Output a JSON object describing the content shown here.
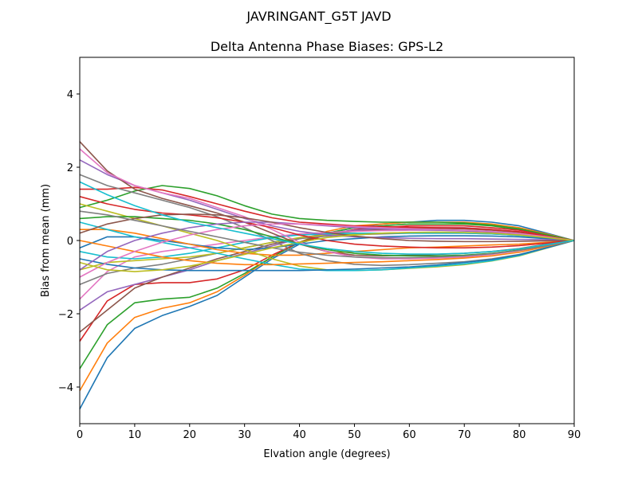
{
  "figure": {
    "suptitle": "JAVRINGANT_G5T  JAVD"
  },
  "chart_data": {
    "type": "line",
    "title": "Delta Antenna Phase Biases: GPS-L2",
    "xlabel": "Elvation angle (degrees)",
    "ylabel": "Bias from mean (mm)",
    "xlim": [
      0,
      90
    ],
    "ylim": [
      -5,
      5
    ],
    "xticks": [
      0,
      10,
      20,
      30,
      40,
      50,
      60,
      70,
      80,
      90
    ],
    "yticks": [
      -4,
      -2,
      0,
      2,
      4
    ],
    "x": [
      0,
      5,
      10,
      15,
      20,
      25,
      30,
      35,
      40,
      45,
      50,
      55,
      60,
      65,
      70,
      75,
      80,
      85,
      90
    ],
    "grid": false,
    "legend": "none",
    "palette": [
      "#1f77b4",
      "#ff7f0e",
      "#2ca02c",
      "#d62728",
      "#9467bd",
      "#8c564b",
      "#e377c2",
      "#7f7f7f",
      "#bcbd22",
      "#17becf"
    ],
    "series": [
      {
        "values": [
          -4.6,
          -3.2,
          -2.4,
          -2.05,
          -1.8,
          -1.5,
          -1.0,
          -0.5,
          -0.1,
          0.2,
          0.35,
          0.45,
          0.5,
          0.55,
          0.55,
          0.5,
          0.4,
          0.2,
          0
        ]
      },
      {
        "values": [
          -4.1,
          -2.8,
          -2.1,
          -1.85,
          -1.7,
          -1.4,
          -0.95,
          -0.45,
          -0.05,
          0.25,
          0.4,
          0.45,
          0.5,
          0.5,
          0.5,
          0.45,
          0.35,
          0.18,
          0
        ]
      },
      {
        "values": [
          -3.5,
          -2.3,
          -1.7,
          -1.6,
          -1.55,
          -1.3,
          -0.9,
          -0.45,
          -0.05,
          0.2,
          0.35,
          0.4,
          0.45,
          0.45,
          0.45,
          0.4,
          0.3,
          0.15,
          0
        ]
      },
      {
        "values": [
          -2.75,
          -1.65,
          -1.2,
          -1.15,
          -1.15,
          -1.05,
          -0.8,
          -0.4,
          -0.05,
          0.15,
          0.3,
          0.35,
          0.4,
          0.4,
          0.4,
          0.35,
          0.28,
          0.14,
          0
        ]
      },
      {
        "values": [
          -1.9,
          -1.4,
          -1.2,
          -1.0,
          -0.8,
          -0.55,
          -0.35,
          -0.15,
          0.05,
          0.2,
          0.28,
          0.32,
          0.35,
          0.35,
          0.35,
          0.3,
          0.24,
          0.12,
          0
        ]
      },
      {
        "values": [
          -2.5,
          -1.9,
          -1.3,
          -1.0,
          -0.75,
          -0.5,
          -0.3,
          -0.1,
          0.05,
          0.18,
          0.25,
          0.3,
          0.32,
          0.33,
          0.32,
          0.28,
          0.22,
          0.11,
          0
        ]
      },
      {
        "values": [
          -1.6,
          -0.85,
          -0.45,
          -0.3,
          -0.2,
          -0.1,
          0.0,
          0.1,
          0.18,
          0.22,
          0.25,
          0.27,
          0.28,
          0.28,
          0.27,
          0.24,
          0.18,
          0.09,
          0
        ]
      },
      {
        "values": [
          -1.2,
          -0.9,
          -0.75,
          -0.65,
          -0.5,
          -0.35,
          -0.2,
          -0.05,
          0.05,
          0.12,
          0.16,
          0.18,
          0.2,
          0.2,
          0.2,
          0.18,
          0.14,
          0.07,
          0
        ]
      },
      {
        "values": [
          -0.8,
          -0.6,
          -0.55,
          -0.5,
          -0.45,
          -0.35,
          -0.2,
          -0.05,
          0.08,
          0.15,
          0.18,
          0.2,
          0.22,
          0.22,
          0.21,
          0.19,
          0.15,
          0.08,
          0
        ]
      },
      {
        "values": [
          -0.3,
          -0.45,
          -0.5,
          -0.45,
          -0.35,
          -0.2,
          -0.05,
          0.08,
          0.15,
          0.18,
          0.2,
          0.2,
          0.2,
          0.2,
          0.2,
          0.18,
          0.14,
          0.07,
          0
        ]
      },
      {
        "values": [
          -0.2,
          0.1,
          0.1,
          0.0,
          -0.1,
          -0.2,
          -0.25,
          -0.2,
          -0.1,
          0.0,
          0.05,
          0.1,
          0.12,
          0.13,
          0.13,
          0.12,
          0.1,
          0.05,
          0
        ]
      },
      {
        "values": [
          0.3,
          0.3,
          0.2,
          0.05,
          -0.1,
          -0.25,
          -0.35,
          -0.4,
          -0.4,
          -0.35,
          -0.3,
          -0.25,
          -0.2,
          -0.18,
          -0.15,
          -0.12,
          -0.1,
          -0.05,
          0
        ]
      },
      {
        "values": [
          0.9,
          1.1,
          1.35,
          1.5,
          1.42,
          1.22,
          0.95,
          0.72,
          0.6,
          0.55,
          0.52,
          0.5,
          0.5,
          0.5,
          0.48,
          0.42,
          0.32,
          0.16,
          0
        ]
      },
      {
        "values": [
          1.4,
          1.4,
          1.45,
          1.38,
          1.2,
          1.0,
          0.8,
          0.62,
          0.5,
          0.45,
          0.4,
          0.38,
          0.36,
          0.35,
          0.34,
          0.3,
          0.24,
          0.12,
          0
        ]
      },
      {
        "values": [
          2.2,
          1.8,
          1.5,
          1.3,
          1.1,
          0.85,
          0.6,
          0.4,
          0.25,
          0.15,
          0.1,
          0.08,
          0.06,
          0.05,
          0.05,
          0.04,
          0.03,
          0.02,
          0
        ]
      },
      {
        "values": [
          2.7,
          1.9,
          1.4,
          1.15,
          0.95,
          0.75,
          0.5,
          0.2,
          -0.1,
          -0.3,
          -0.4,
          -0.42,
          -0.4,
          -0.38,
          -0.35,
          -0.3,
          -0.22,
          -0.1,
          0
        ]
      },
      {
        "values": [
          2.5,
          1.85,
          1.5,
          1.3,
          1.15,
          0.9,
          0.65,
          0.3,
          -0.05,
          -0.3,
          -0.45,
          -0.5,
          -0.5,
          -0.48,
          -0.45,
          -0.38,
          -0.28,
          -0.14,
          0
        ]
      },
      {
        "values": [
          1.8,
          1.5,
          1.3,
          1.1,
          0.9,
          0.65,
          0.35,
          0.0,
          -0.35,
          -0.55,
          -0.65,
          -0.68,
          -0.66,
          -0.62,
          -0.58,
          -0.5,
          -0.38,
          -0.19,
          0
        ]
      },
      {
        "values": [
          1.0,
          0.8,
          0.6,
          0.4,
          0.2,
          0.0,
          -0.25,
          -0.5,
          -0.7,
          -0.8,
          -0.82,
          -0.8,
          -0.76,
          -0.72,
          -0.66,
          -0.56,
          -0.42,
          -0.21,
          0
        ]
      },
      {
        "values": [
          0.5,
          0.3,
          0.1,
          -0.05,
          -0.2,
          -0.35,
          -0.5,
          -0.65,
          -0.78,
          -0.82,
          -0.82,
          -0.8,
          -0.75,
          -0.7,
          -0.64,
          -0.55,
          -0.41,
          -0.2,
          0
        ]
      },
      {
        "values": [
          -0.5,
          -0.65,
          -0.75,
          -0.8,
          -0.82,
          -0.82,
          -0.82,
          -0.82,
          -0.82,
          -0.8,
          -0.78,
          -0.75,
          -0.72,
          -0.67,
          -0.6,
          -0.52,
          -0.39,
          -0.2,
          0
        ]
      },
      {
        "values": [
          0.0,
          -0.15,
          -0.3,
          -0.45,
          -0.55,
          -0.62,
          -0.66,
          -0.66,
          -0.64,
          -0.62,
          -0.6,
          -0.58,
          -0.55,
          -0.52,
          -0.48,
          -0.42,
          -0.32,
          -0.16,
          0
        ]
      },
      {
        "values": [
          0.6,
          0.65,
          0.65,
          0.6,
          0.55,
          0.45,
          0.3,
          0.1,
          -0.1,
          -0.25,
          -0.35,
          -0.4,
          -0.42,
          -0.42,
          -0.4,
          -0.35,
          -0.26,
          -0.13,
          0
        ]
      },
      {
        "values": [
          1.2,
          1.0,
          0.85,
          0.75,
          0.7,
          0.62,
          0.5,
          0.35,
          0.15,
          0.0,
          -0.1,
          -0.15,
          -0.18,
          -0.2,
          -0.2,
          -0.18,
          -0.14,
          -0.07,
          0
        ]
      },
      {
        "values": [
          -0.8,
          -0.3,
          0.0,
          0.2,
          0.35,
          0.45,
          0.5,
          0.5,
          0.45,
          0.4,
          0.35,
          0.32,
          0.3,
          0.28,
          0.26,
          0.23,
          0.18,
          0.09,
          0
        ]
      },
      {
        "values": [
          0.2,
          0.45,
          0.6,
          0.7,
          0.72,
          0.7,
          0.62,
          0.5,
          0.35,
          0.22,
          0.12,
          0.05,
          0.0,
          -0.02,
          -0.03,
          -0.03,
          -0.02,
          -0.01,
          0
        ]
      },
      {
        "values": [
          -1.0,
          -0.6,
          -0.3,
          -0.05,
          0.15,
          0.3,
          0.4,
          0.45,
          0.45,
          0.42,
          0.38,
          0.35,
          0.32,
          0.3,
          0.28,
          0.25,
          0.19,
          0.1,
          0
        ]
      },
      {
        "values": [
          0.8,
          0.7,
          0.55,
          0.4,
          0.25,
          0.1,
          -0.05,
          -0.2,
          -0.32,
          -0.4,
          -0.45,
          -0.47,
          -0.47,
          -0.45,
          -0.42,
          -0.36,
          -0.27,
          -0.14,
          0
        ]
      },
      {
        "values": [
          -0.6,
          -0.8,
          -0.85,
          -0.8,
          -0.7,
          -0.55,
          -0.38,
          -0.2,
          -0.05,
          0.08,
          0.15,
          0.2,
          0.22,
          0.23,
          0.22,
          0.2,
          0.15,
          0.08,
          0
        ]
      },
      {
        "values": [
          1.6,
          1.25,
          0.95,
          0.7,
          0.5,
          0.35,
          0.2,
          0.05,
          -0.1,
          -0.22,
          -0.3,
          -0.35,
          -0.37,
          -0.37,
          -0.35,
          -0.3,
          -0.23,
          -0.11,
          0
        ]
      }
    ]
  }
}
